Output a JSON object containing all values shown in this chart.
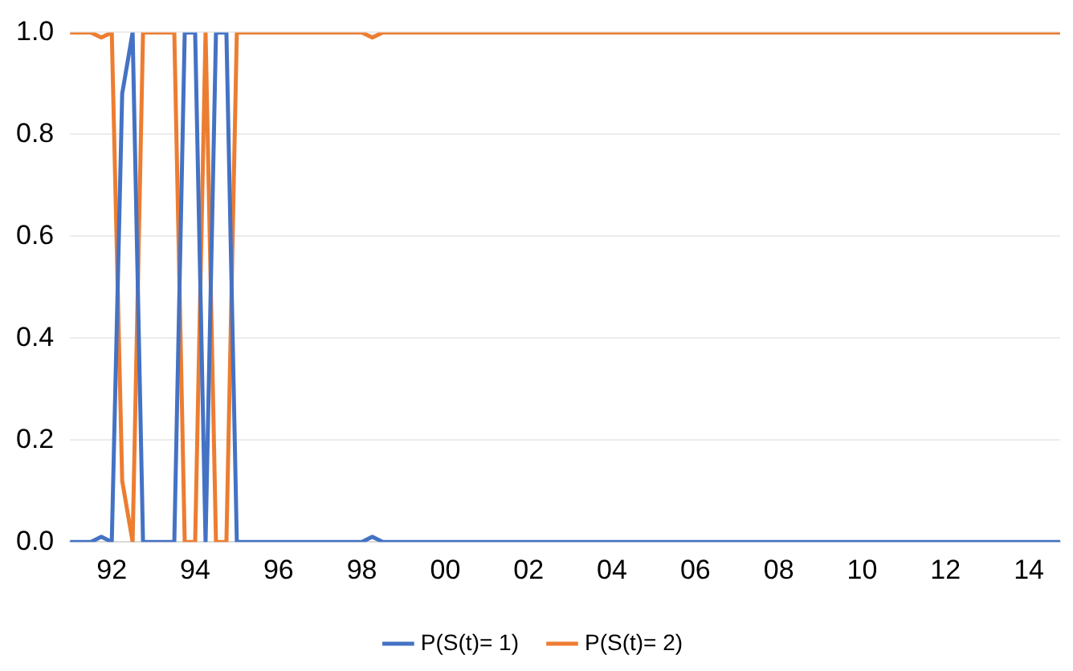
{
  "chart_data": {
    "type": "line",
    "categories": [
      null,
      null,
      null,
      null,
      "92",
      null,
      null,
      null,
      null,
      null,
      null,
      null,
      "94",
      null,
      null,
      null,
      null,
      null,
      null,
      null,
      "96",
      null,
      null,
      null,
      null,
      null,
      null,
      null,
      "98",
      null,
      null,
      null,
      null,
      null,
      null,
      null,
      "00",
      null,
      null,
      null,
      null,
      null,
      null,
      null,
      "02",
      null,
      null,
      null,
      null,
      null,
      null,
      null,
      "04",
      null,
      null,
      null,
      null,
      null,
      null,
      null,
      "06",
      null,
      null,
      null,
      null,
      null,
      null,
      null,
      "08",
      null,
      null,
      null,
      null,
      null,
      null,
      null,
      "10",
      null,
      null,
      null,
      null,
      null,
      null,
      null,
      "12",
      null,
      null,
      null,
      null,
      null,
      null,
      null,
      "14",
      null,
      null,
      null
    ],
    "series": [
      {
        "name": "P(S(t)= 1)",
        "color": "#4472c4",
        "values": [
          0,
          0,
          0,
          0.01,
          0,
          0.88,
          1,
          0,
          0,
          0,
          0,
          1,
          1,
          0,
          1,
          1,
          0,
          0,
          0,
          0,
          0,
          0,
          0,
          0,
          0,
          0,
          0,
          0,
          0,
          0.01,
          0,
          0,
          0,
          0,
          0,
          0,
          0,
          0,
          0,
          0,
          0,
          0,
          0,
          0,
          0,
          0,
          0,
          0,
          0,
          0,
          0,
          0,
          0,
          0,
          0,
          0,
          0,
          0,
          0,
          0,
          0,
          0,
          0,
          0,
          0,
          0,
          0,
          0,
          0,
          0,
          0,
          0,
          0,
          0,
          0,
          0,
          0,
          0,
          0,
          0,
          0,
          0,
          0,
          0,
          0,
          0,
          0,
          0,
          0,
          0,
          0,
          0,
          0,
          0,
          0,
          0
        ]
      },
      {
        "name": "P(S(t)= 2)",
        "color": "#ed7d31",
        "values": [
          1,
          1,
          1,
          0.99,
          1,
          0.12,
          0,
          1,
          1,
          1,
          1,
          0,
          0,
          1,
          0,
          0,
          1,
          1,
          1,
          1,
          1,
          1,
          1,
          1,
          1,
          1,
          1,
          1,
          1,
          0.99,
          1,
          1,
          1,
          1,
          1,
          1,
          1,
          1,
          1,
          1,
          1,
          1,
          1,
          1,
          1,
          1,
          1,
          1,
          1,
          1,
          1,
          1,
          1,
          1,
          1,
          1,
          1,
          1,
          1,
          1,
          1,
          1,
          1,
          1,
          1,
          1,
          1,
          1,
          1,
          1,
          1,
          1,
          1,
          1,
          1,
          1,
          1,
          1,
          1,
          1,
          1,
          1,
          1,
          1,
          1,
          1,
          1,
          1,
          1,
          1,
          1,
          1,
          1,
          1,
          1,
          1
        ]
      }
    ],
    "ylim": [
      0,
      1
    ],
    "yticks": [
      {
        "value": 0,
        "label": "0.0"
      },
      {
        "value": 0.2,
        "label": "0.2"
      },
      {
        "value": 0.4,
        "label": "0.4"
      },
      {
        "value": 0.6,
        "label": "0.6"
      },
      {
        "value": 0.8,
        "label": "0.8"
      },
      {
        "value": 1,
        "label": "1.0"
      }
    ],
    "grid": "y",
    "legend": "bottom",
    "marker": "none",
    "line_style": "solid"
  }
}
